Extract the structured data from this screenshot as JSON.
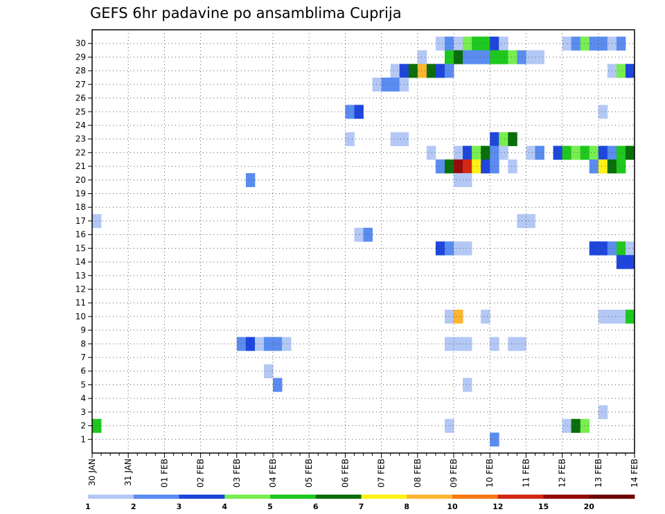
{
  "chart_data": {
    "type": "heatmap",
    "title": "GEFS 6hr padavine po ansamblima Cuprija",
    "xlabel": "",
    "ylabel": "",
    "x_tick_labels": [
      "30 JAN",
      "31 JAN",
      "01 FEB",
      "02 FEB",
      "03 FEB",
      "04 FEB",
      "05 FEB",
      "06 FEB",
      "07 FEB",
      "08 FEB",
      "09 FEB",
      "10 FEB",
      "11 FEB",
      "12 FEB",
      "13 FEB",
      "14 FEB"
    ],
    "x_step": "6hr",
    "y_tick_labels": [
      "1",
      "2",
      "3",
      "4",
      "5",
      "6",
      "7",
      "8",
      "9",
      "10",
      "11",
      "12",
      "13",
      "14",
      "15",
      "16",
      "17",
      "18",
      "19",
      "20",
      "21",
      "22",
      "23",
      "24",
      "25",
      "26",
      "27",
      "28",
      "29",
      "30"
    ],
    "ylim": [
      1,
      30
    ],
    "grid": true,
    "colorbar": {
      "labels": [
        "1",
        "2",
        "3",
        "4",
        "5",
        "6",
        "7",
        "8",
        "10",
        "12",
        "15",
        "20"
      ],
      "colors": [
        "#b4c8f5",
        "#5a8cf0",
        "#1e46dc",
        "#78ee50",
        "#1ec81e",
        "#0a6e0a",
        "#fff214",
        "#ffb432",
        "#f57814",
        "#d22814",
        "#960a0a",
        "#6e0000"
      ]
    },
    "cells": [
      {
        "m": 30,
        "t": 38,
        "c": 1
      },
      {
        "m": 30,
        "t": 39,
        "c": 2
      },
      {
        "m": 30,
        "t": 40,
        "c": 1
      },
      {
        "m": 30,
        "t": 41,
        "c": 4
      },
      {
        "m": 30,
        "t": 42,
        "c": 5
      },
      {
        "m": 30,
        "t": 43,
        "c": 5
      },
      {
        "m": 30,
        "t": 44,
        "c": 3
      },
      {
        "m": 30,
        "t": 45,
        "c": 1
      },
      {
        "m": 30,
        "t": 52,
        "c": 1
      },
      {
        "m": 30,
        "t": 53,
        "c": 2
      },
      {
        "m": 30,
        "t": 54,
        "c": 4
      },
      {
        "m": 30,
        "t": 55,
        "c": 2
      },
      {
        "m": 30,
        "t": 56,
        "c": 2
      },
      {
        "m": 30,
        "t": 57,
        "c": 1
      },
      {
        "m": 30,
        "t": 58,
        "c": 2
      },
      {
        "m": 29,
        "t": 36,
        "c": 1
      },
      {
        "m": 29,
        "t": 39,
        "c": 5
      },
      {
        "m": 29,
        "t": 40,
        "c": 6
      },
      {
        "m": 29,
        "t": 41,
        "c": 2
      },
      {
        "m": 29,
        "t": 42,
        "c": 2
      },
      {
        "m": 29,
        "t": 43,
        "c": 2
      },
      {
        "m": 29,
        "t": 44,
        "c": 5
      },
      {
        "m": 29,
        "t": 45,
        "c": 5
      },
      {
        "m": 29,
        "t": 46,
        "c": 4
      },
      {
        "m": 29,
        "t": 47,
        "c": 2
      },
      {
        "m": 29,
        "t": 48,
        "c": 1
      },
      {
        "m": 29,
        "t": 49,
        "c": 1
      },
      {
        "m": 28,
        "t": 33,
        "c": 1
      },
      {
        "m": 28,
        "t": 34,
        "c": 3
      },
      {
        "m": 28,
        "t": 35,
        "c": 6
      },
      {
        "m": 28,
        "t": 36,
        "c": 8
      },
      {
        "m": 28,
        "t": 37,
        "c": 6
      },
      {
        "m": 28,
        "t": 38,
        "c": 3
      },
      {
        "m": 28,
        "t": 39,
        "c": 2
      },
      {
        "m": 28,
        "t": 57,
        "c": 1
      },
      {
        "m": 28,
        "t": 58,
        "c": 4
      },
      {
        "m": 28,
        "t": 59,
        "c": 3
      },
      {
        "m": 27,
        "t": 31,
        "c": 1
      },
      {
        "m": 27,
        "t": 32,
        "c": 2
      },
      {
        "m": 27,
        "t": 33,
        "c": 2
      },
      {
        "m": 27,
        "t": 34,
        "c": 1
      },
      {
        "m": 25,
        "t": 28,
        "c": 2
      },
      {
        "m": 25,
        "t": 29,
        "c": 3
      },
      {
        "m": 25,
        "t": 56,
        "c": 1
      },
      {
        "m": 23,
        "t": 28,
        "c": 1
      },
      {
        "m": 23,
        "t": 33,
        "c": 1
      },
      {
        "m": 23,
        "t": 34,
        "c": 1
      },
      {
        "m": 23,
        "t": 44,
        "c": 3
      },
      {
        "m": 23,
        "t": 45,
        "c": 4
      },
      {
        "m": 23,
        "t": 46,
        "c": 6
      },
      {
        "m": 22,
        "t": 37,
        "c": 1
      },
      {
        "m": 22,
        "t": 40,
        "c": 1
      },
      {
        "m": 22,
        "t": 41,
        "c": 3
      },
      {
        "m": 22,
        "t": 42,
        "c": 4
      },
      {
        "m": 22,
        "t": 43,
        "c": 6
      },
      {
        "m": 22,
        "t": 44,
        "c": 2
      },
      {
        "m": 22,
        "t": 45,
        "c": 1
      },
      {
        "m": 22,
        "t": 48,
        "c": 1
      },
      {
        "m": 22,
        "t": 49,
        "c": 2
      },
      {
        "m": 22,
        "t": 51,
        "c": 3
      },
      {
        "m": 22,
        "t": 52,
        "c": 5
      },
      {
        "m": 22,
        "t": 53,
        "c": 4
      },
      {
        "m": 22,
        "t": 54,
        "c": 5
      },
      {
        "m": 22,
        "t": 55,
        "c": 4
      },
      {
        "m": 22,
        "t": 56,
        "c": 3
      },
      {
        "m": 22,
        "t": 57,
        "c": 2
      },
      {
        "m": 22,
        "t": 58,
        "c": 5
      },
      {
        "m": 22,
        "t": 59,
        "c": 6
      },
      {
        "m": 21,
        "t": 38,
        "c": 2
      },
      {
        "m": 21,
        "t": 39,
        "c": 6
      },
      {
        "m": 21,
        "t": 40,
        "c": 11
      },
      {
        "m": 21,
        "t": 41,
        "c": 10
      },
      {
        "m": 21,
        "t": 42,
        "c": 7
      },
      {
        "m": 21,
        "t": 43,
        "c": 3
      },
      {
        "m": 21,
        "t": 44,
        "c": 2
      },
      {
        "m": 21,
        "t": 46,
        "c": 1
      },
      {
        "m": 21,
        "t": 55,
        "c": 2
      },
      {
        "m": 21,
        "t": 56,
        "c": 7
      },
      {
        "m": 21,
        "t": 57,
        "c": 6
      },
      {
        "m": 21,
        "t": 58,
        "c": 5
      },
      {
        "m": 20,
        "t": 17,
        "c": 2
      },
      {
        "m": 20,
        "t": 40,
        "c": 1
      },
      {
        "m": 20,
        "t": 41,
        "c": 1
      },
      {
        "m": 17,
        "t": 0,
        "c": 1
      },
      {
        "m": 17,
        "t": 47,
        "c": 1
      },
      {
        "m": 17,
        "t": 48,
        "c": 1
      },
      {
        "m": 16,
        "t": 29,
        "c": 1
      },
      {
        "m": 16,
        "t": 30,
        "c": 2
      },
      {
        "m": 15,
        "t": 38,
        "c": 3
      },
      {
        "m": 15,
        "t": 39,
        "c": 2
      },
      {
        "m": 15,
        "t": 40,
        "c": 1
      },
      {
        "m": 15,
        "t": 41,
        "c": 1
      },
      {
        "m": 15,
        "t": 55,
        "c": 3
      },
      {
        "m": 15,
        "t": 56,
        "c": 3
      },
      {
        "m": 15,
        "t": 57,
        "c": 2
      },
      {
        "m": 15,
        "t": 58,
        "c": 5
      },
      {
        "m": 15,
        "t": 59,
        "c": 1
      },
      {
        "m": 14,
        "t": 58,
        "c": 3
      },
      {
        "m": 14,
        "t": 59,
        "c": 3
      },
      {
        "m": 10,
        "t": 39,
        "c": 1
      },
      {
        "m": 10,
        "t": 40,
        "c": 8
      },
      {
        "m": 10,
        "t": 43,
        "c": 1
      },
      {
        "m": 10,
        "t": 56,
        "c": 1
      },
      {
        "m": 10,
        "t": 57,
        "c": 1
      },
      {
        "m": 10,
        "t": 58,
        "c": 1
      },
      {
        "m": 10,
        "t": 59,
        "c": 5
      },
      {
        "m": 8,
        "t": 16,
        "c": 2
      },
      {
        "m": 8,
        "t": 17,
        "c": 3
      },
      {
        "m": 8,
        "t": 18,
        "c": 1
      },
      {
        "m": 8,
        "t": 19,
        "c": 2
      },
      {
        "m": 8,
        "t": 20,
        "c": 2
      },
      {
        "m": 8,
        "t": 21,
        "c": 1
      },
      {
        "m": 8,
        "t": 39,
        "c": 1
      },
      {
        "m": 8,
        "t": 40,
        "c": 1
      },
      {
        "m": 8,
        "t": 41,
        "c": 1
      },
      {
        "m": 8,
        "t": 44,
        "c": 1
      },
      {
        "m": 8,
        "t": 46,
        "c": 1
      },
      {
        "m": 8,
        "t": 47,
        "c": 1
      },
      {
        "m": 6,
        "t": 19,
        "c": 1
      },
      {
        "m": 5,
        "t": 20,
        "c": 2
      },
      {
        "m": 5,
        "t": 41,
        "c": 1
      },
      {
        "m": 3,
        "t": 56,
        "c": 1
      },
      {
        "m": 2,
        "t": 0,
        "c": 5
      },
      {
        "m": 2,
        "t": 39,
        "c": 1
      },
      {
        "m": 2,
        "t": 52,
        "c": 1
      },
      {
        "m": 2,
        "t": 53,
        "c": 6
      },
      {
        "m": 2,
        "t": 54,
        "c": 4
      },
      {
        "m": 1,
        "t": 44,
        "c": 2
      }
    ]
  }
}
